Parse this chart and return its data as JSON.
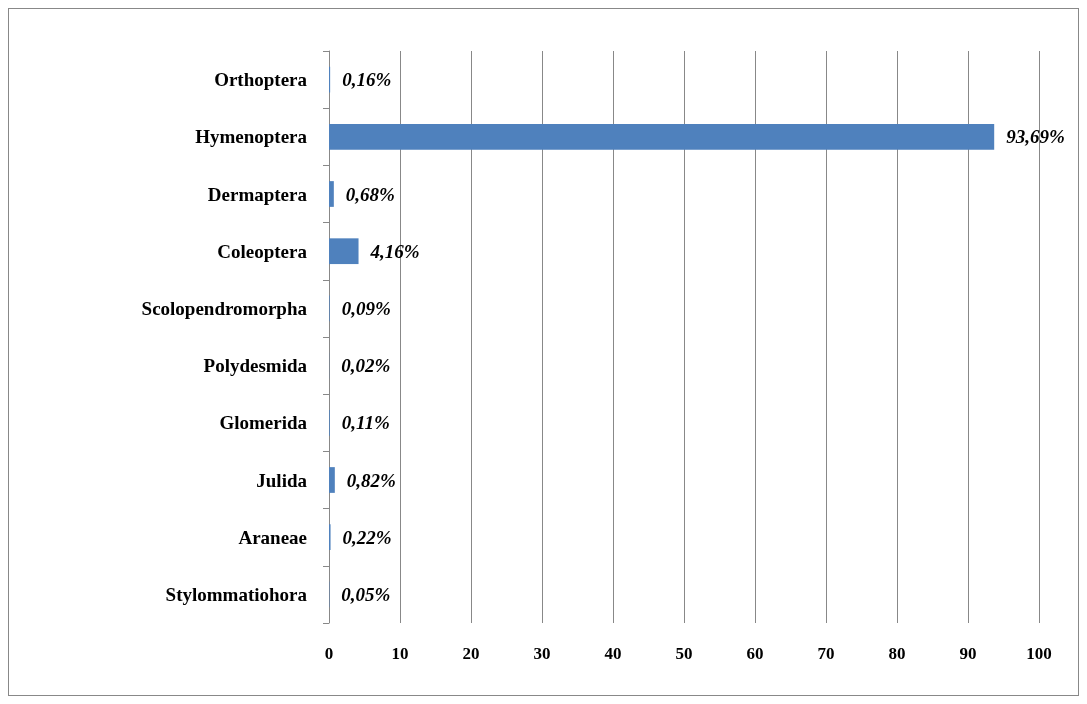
{
  "chart_data": {
    "type": "bar",
    "orientation": "horizontal",
    "categories": [
      "Orthoptera",
      "Hymenoptera",
      "Dermaptera",
      "Coleoptera",
      "Scolopendromorpha",
      "Polydesmida",
      "Glomerida",
      "Julida",
      "Araneae",
      "Stylommatiohora"
    ],
    "values": [
      0.16,
      93.69,
      0.68,
      4.16,
      0.09,
      0.02,
      0.11,
      0.82,
      0.22,
      0.05
    ],
    "value_labels": [
      "0,16%",
      "93,69%",
      "0,68%",
      "4,16%",
      "0,09%",
      "0,02%",
      "0,11%",
      "0,82%",
      "0,22%",
      "0,05%"
    ],
    "color": "#4f81bd",
    "xlim": [
      0,
      100
    ],
    "xticks": [
      0,
      10,
      20,
      30,
      40,
      50,
      60,
      70,
      80,
      90,
      100
    ],
    "grid": "x"
  }
}
